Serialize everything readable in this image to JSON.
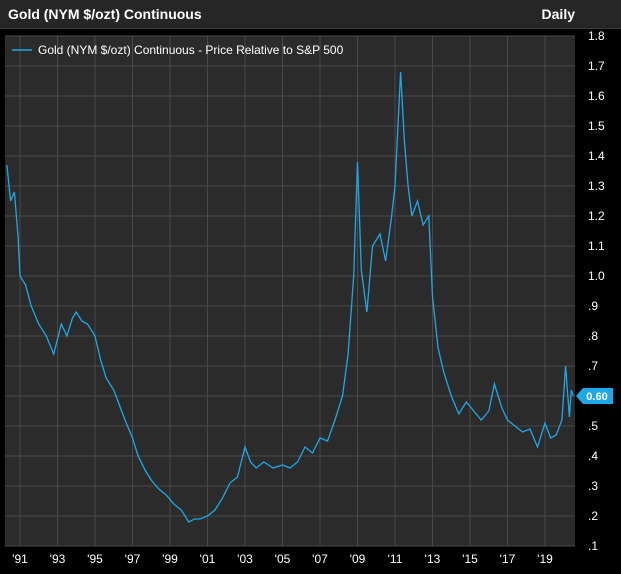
{
  "header": {
    "title": "Gold (NYM $/ozt) Continuous",
    "frequency": "Daily"
  },
  "colors": {
    "background": "#000000",
    "plot_background": "#2b2b2b",
    "grid": "#4a4a4a",
    "series": "#1ea8e8",
    "text": "#ffffff"
  },
  "chart_data": {
    "type": "line",
    "title": "Gold (NYM $/ozt) Continuous",
    "xlabel": "",
    "ylabel": "",
    "legend": {
      "position": "top-left",
      "entries": [
        "Gold (NYM $/ozt) Continuous - Price Relative to S&P 500"
      ]
    },
    "grid": true,
    "ylim": [
      0.1,
      1.8
    ],
    "xlim": [
      1990.2,
      2020.6
    ],
    "x_ticks": [
      "'91",
      "'93",
      "'95",
      "'97",
      "'99",
      "'01",
      "'03",
      "'05",
      "'07",
      "'09",
      "'11",
      "'13",
      "'15",
      "'17",
      "'19"
    ],
    "x_tick_years": [
      1991,
      1993,
      1995,
      1997,
      1999,
      2001,
      2003,
      2005,
      2007,
      2009,
      2011,
      2013,
      2015,
      2017,
      2019
    ],
    "y_ticks": [
      "1.8",
      "1.7",
      "1.6",
      "1.5",
      "1.4",
      "1.3",
      "1.2",
      "1.1",
      "1.0",
      ".9",
      ".8",
      ".7",
      ".6",
      ".5",
      ".4",
      ".3",
      ".2",
      ".1"
    ],
    "y_tick_values": [
      1.8,
      1.7,
      1.6,
      1.5,
      1.4,
      1.3,
      1.2,
      1.1,
      1.0,
      0.9,
      0.8,
      0.7,
      0.6,
      0.5,
      0.4,
      0.3,
      0.2,
      0.1
    ],
    "last_value_label": "0.60",
    "last_value": 0.6,
    "series": [
      {
        "name": "Gold (NYM $/ozt) Continuous - Price Relative to S&P 500",
        "x": [
          1990.3,
          1990.5,
          1990.7,
          1990.9,
          1991.0,
          1991.3,
          1991.6,
          1992.0,
          1992.4,
          1992.8,
          1993.2,
          1993.5,
          1993.8,
          1994.0,
          1994.3,
          1994.6,
          1995.0,
          1995.3,
          1995.6,
          1996.0,
          1996.3,
          1996.6,
          1997.0,
          1997.3,
          1997.7,
          1998.0,
          1998.4,
          1998.8,
          1999.2,
          1999.6,
          1999.8,
          2000.0,
          2000.3,
          2000.6,
          2001.0,
          2001.4,
          2001.8,
          2002.2,
          2002.6,
          2003.0,
          2003.3,
          2003.6,
          2004.0,
          2004.5,
          2005.0,
          2005.4,
          2005.8,
          2006.2,
          2006.6,
          2007.0,
          2007.4,
          2007.8,
          2008.2,
          2008.5,
          2008.8,
          2009.0,
          2009.2,
          2009.5,
          2009.8,
          2010.2,
          2010.5,
          2010.8,
          2011.0,
          2011.3,
          2011.5,
          2011.7,
          2011.9,
          2012.2,
          2012.5,
          2012.8,
          2013.0,
          2013.3,
          2013.6,
          2014.0,
          2014.4,
          2014.8,
          2015.2,
          2015.6,
          2016.0,
          2016.3,
          2016.7,
          2017.0,
          2017.4,
          2017.8,
          2018.2,
          2018.6,
          2019.0,
          2019.3,
          2019.6,
          2019.9,
          2020.1,
          2020.3,
          2020.4,
          2020.5
        ],
        "y": [
          1.37,
          1.25,
          1.28,
          1.13,
          1.0,
          0.97,
          0.9,
          0.84,
          0.8,
          0.74,
          0.84,
          0.8,
          0.86,
          0.88,
          0.85,
          0.84,
          0.8,
          0.72,
          0.66,
          0.62,
          0.57,
          0.52,
          0.46,
          0.4,
          0.35,
          0.32,
          0.29,
          0.27,
          0.24,
          0.22,
          0.2,
          0.18,
          0.19,
          0.19,
          0.2,
          0.22,
          0.26,
          0.31,
          0.33,
          0.43,
          0.38,
          0.36,
          0.38,
          0.36,
          0.37,
          0.36,
          0.38,
          0.43,
          0.41,
          0.46,
          0.45,
          0.52,
          0.6,
          0.74,
          1.0,
          1.38,
          1.02,
          0.88,
          1.1,
          1.14,
          1.05,
          1.19,
          1.3,
          1.68,
          1.45,
          1.3,
          1.2,
          1.25,
          1.17,
          1.2,
          0.93,
          0.76,
          0.68,
          0.6,
          0.54,
          0.58,
          0.55,
          0.52,
          0.55,
          0.64,
          0.56,
          0.52,
          0.5,
          0.48,
          0.49,
          0.43,
          0.51,
          0.46,
          0.47,
          0.52,
          0.7,
          0.53,
          0.62,
          0.6
        ]
      }
    ]
  }
}
